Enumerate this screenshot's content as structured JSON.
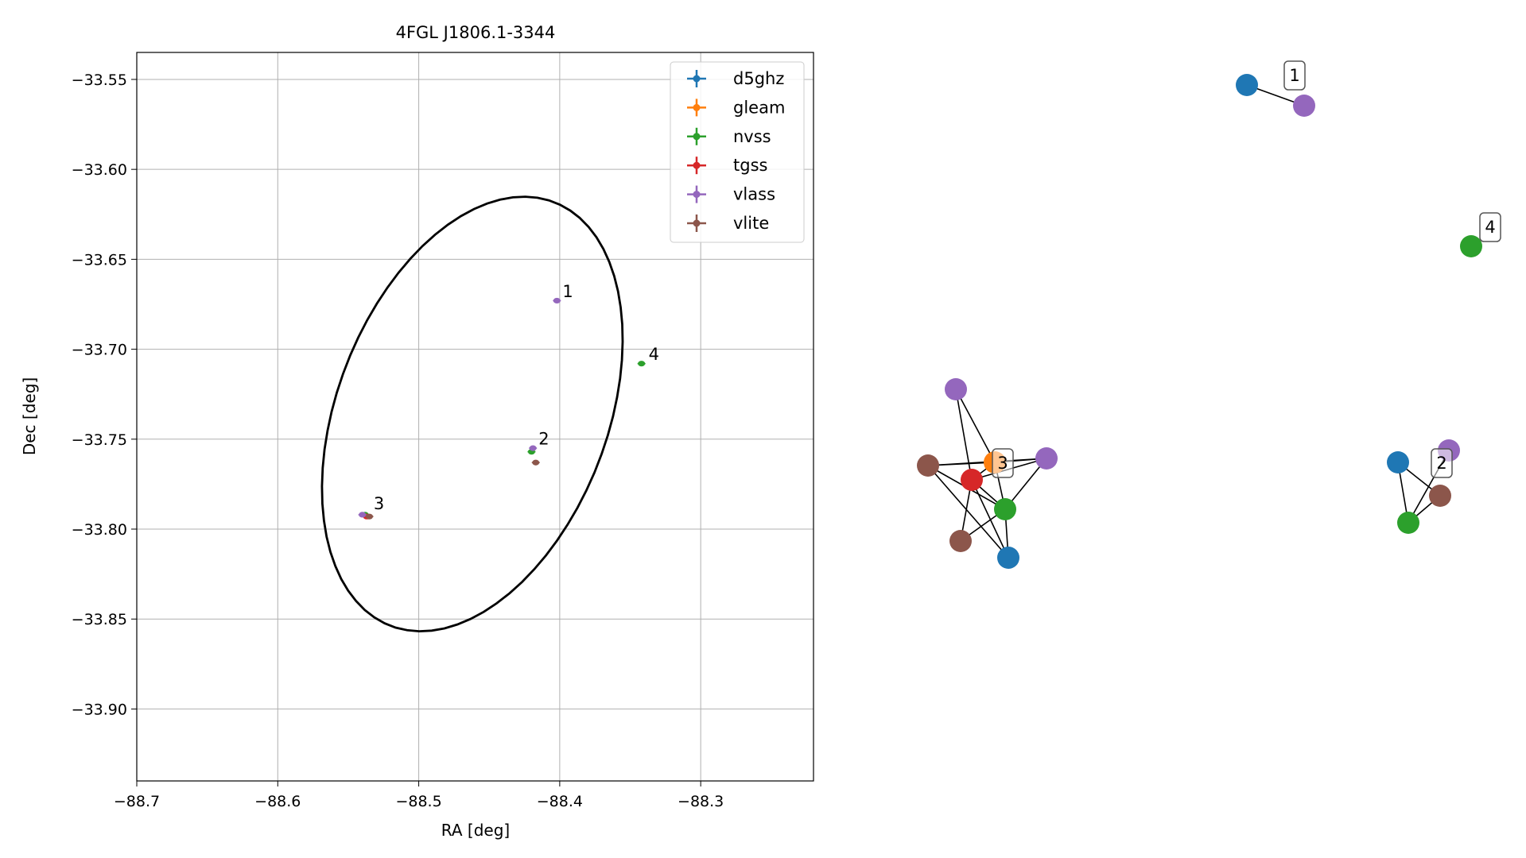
{
  "chart_data": [
    {
      "type": "scatter",
      "title": "4FGL J1806.1-3344",
      "xlabel": "RA [deg]",
      "ylabel": "Dec [deg]",
      "xlim": [
        -88.7,
        -88.22
      ],
      "ylim": [
        -33.94,
        -33.535
      ],
      "xticks": [
        -88.7,
        -88.6,
        -88.5,
        -88.4,
        -88.3
      ],
      "xtick_labels": [
        "−88.7",
        "−88.6",
        "−88.5",
        "−88.4",
        "−88.3"
      ],
      "yticks": [
        -33.55,
        -33.6,
        -33.65,
        -33.7,
        -33.75,
        -33.8,
        -33.85,
        -33.9
      ],
      "ytick_labels": [
        "−33.55",
        "−33.60",
        "−33.65",
        "−33.70",
        "−33.75",
        "−33.80",
        "−33.85",
        "−33.90"
      ],
      "grid": true,
      "legend_position": "top-right",
      "series": [
        {
          "name": "d5ghz",
          "color": "#1f77b4",
          "points": []
        },
        {
          "name": "gleam",
          "color": "#ff7f0e",
          "points": [
            [
              -88.536,
              -33.793
            ]
          ]
        },
        {
          "name": "nvss",
          "color": "#2ca02c",
          "points": [
            [
              -88.342,
              -33.708
            ],
            [
              -88.42,
              -33.757
            ],
            [
              -88.538,
              -33.792
            ]
          ]
        },
        {
          "name": "tgss",
          "color": "#d62728",
          "points": [
            [
              -88.537,
              -33.793
            ]
          ]
        },
        {
          "name": "vlass",
          "color": "#9467bd",
          "points": [
            [
              -88.402,
              -33.673
            ],
            [
              -88.419,
              -33.755
            ],
            [
              -88.54,
              -33.792
            ]
          ]
        },
        {
          "name": "vlite",
          "color": "#8c564b",
          "points": [
            [
              -88.417,
              -33.763
            ],
            [
              -88.535,
              -33.793
            ]
          ]
        }
      ],
      "annotations": [
        {
          "text": "1",
          "x": -88.398,
          "y": -33.671
        },
        {
          "text": "2",
          "x": -88.415,
          "y": -33.753
        },
        {
          "text": "3",
          "x": -88.532,
          "y": -33.789
        },
        {
          "text": "4",
          "x": -88.337,
          "y": -33.706
        }
      ],
      "ellipse": {
        "cx": -88.462,
        "cy": -33.736,
        "a": 0.133,
        "b": 0.091,
        "angle_deg": 55
      }
    },
    {
      "type": "network",
      "groups": [
        {
          "label": "1",
          "nodes": [
            {
              "color": "#1f77b4"
            },
            {
              "color": "#9467bd"
            }
          ]
        },
        {
          "label": "4",
          "nodes": [
            {
              "color": "#2ca02c"
            }
          ]
        },
        {
          "label": "3",
          "nodes": [
            {
              "color": "#9467bd"
            },
            {
              "color": "#ff7f0e"
            },
            {
              "color": "#9467bd"
            },
            {
              "color": "#8c564b"
            },
            {
              "color": "#d62728"
            },
            {
              "color": "#2ca02c"
            },
            {
              "color": "#8c564b"
            },
            {
              "color": "#1f77b4"
            }
          ]
        },
        {
          "label": "2",
          "nodes": [
            {
              "color": "#9467bd"
            },
            {
              "color": "#1f77b4"
            },
            {
              "color": "#8c564b"
            },
            {
              "color": "#2ca02c"
            }
          ]
        }
      ]
    }
  ]
}
